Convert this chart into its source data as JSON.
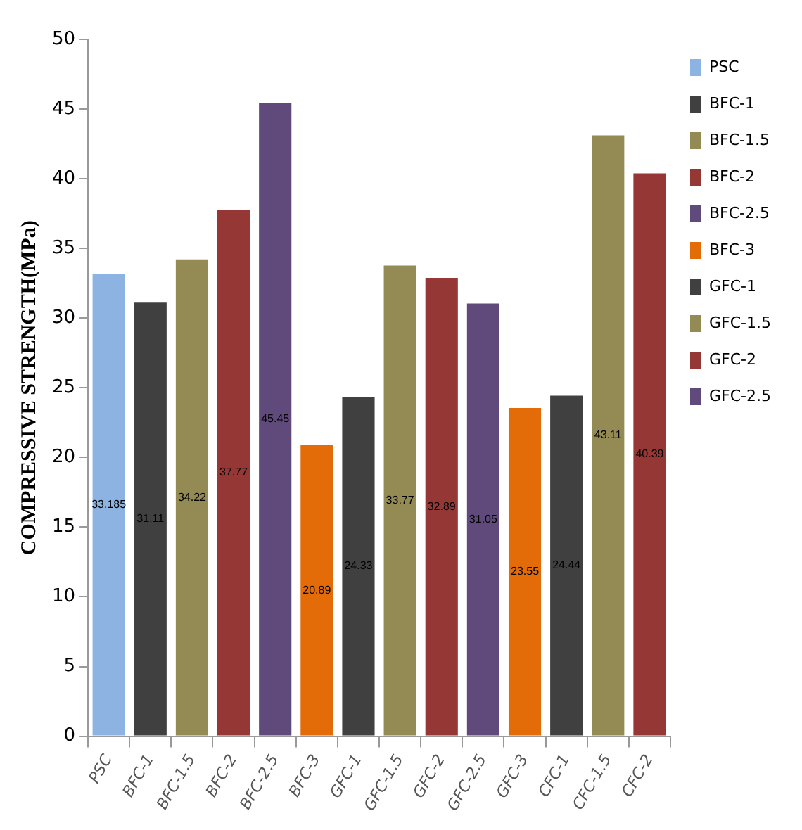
{
  "chart_data": {
    "type": "bar",
    "ylabel": "COMPRESSIVE STRENGTH(MPa)",
    "categories": [
      "PSC",
      "BFC-1",
      "BFC-1.5",
      "BFC-2",
      "BFC-2.5",
      "BFC-3",
      "GFC-1",
      "GFC-1.5",
      "GFC-2",
      "GFC-2.5",
      "GFC-3",
      "CFC-1",
      "CFC-1.5",
      "CFC-2"
    ],
    "series": [
      {
        "name": "PSC",
        "color": "#8db3e2",
        "values": [
          33.185,
          null,
          null,
          null,
          null,
          null,
          null,
          null,
          null,
          null,
          null,
          null,
          null,
          null
        ]
      },
      {
        "name": "BFC-1",
        "color": "#404040",
        "values": [
          null,
          31.11,
          null,
          null,
          null,
          null,
          null,
          null,
          null,
          null,
          null,
          null,
          null,
          null
        ]
      },
      {
        "name": "BFC-1.5",
        "color": "#948a54",
        "values": [
          null,
          null,
          34.22,
          null,
          null,
          null,
          null,
          null,
          null,
          null,
          null,
          null,
          null,
          null
        ]
      },
      {
        "name": "BFC-2",
        "color": "#953735",
        "values": [
          null,
          null,
          null,
          37.77,
          null,
          null,
          null,
          null,
          null,
          null,
          null,
          null,
          null,
          null
        ]
      },
      {
        "name": "BFC-2.5",
        "color": "#604a7b",
        "values": [
          null,
          null,
          null,
          null,
          45.45,
          null,
          null,
          null,
          null,
          null,
          null,
          null,
          null,
          null
        ]
      },
      {
        "name": "BFC-3",
        "color": "#e36c09",
        "values": [
          null,
          null,
          null,
          null,
          null,
          20.89,
          null,
          null,
          null,
          null,
          null,
          null,
          null,
          null
        ]
      },
      {
        "name": "GFC-1",
        "color": "#404040",
        "values": [
          null,
          null,
          null,
          null,
          null,
          null,
          24.33,
          null,
          null,
          null,
          null,
          null,
          null,
          null
        ]
      },
      {
        "name": "GFC-1.5",
        "color": "#948a54",
        "values": [
          null,
          null,
          null,
          null,
          null,
          null,
          null,
          33.77,
          null,
          null,
          null,
          null,
          null,
          null
        ]
      },
      {
        "name": "GFC-2",
        "color": "#953735",
        "values": [
          null,
          null,
          null,
          null,
          null,
          null,
          null,
          null,
          32.89,
          null,
          null,
          null,
          null,
          null
        ]
      },
      {
        "name": "GFC-2.5",
        "color": "#604a7b",
        "values": [
          null,
          null,
          null,
          null,
          null,
          null,
          null,
          null,
          null,
          31.05,
          null,
          null,
          null,
          null
        ]
      },
      {
        "color": "#e36c09",
        "values": [
          null,
          null,
          null,
          null,
          null,
          null,
          null,
          null,
          null,
          null,
          23.55,
          null,
          null,
          null
        ]
      },
      {
        "color": "#404040",
        "values": [
          null,
          null,
          null,
          null,
          null,
          null,
          null,
          null,
          null,
          null,
          null,
          24.44,
          null,
          null
        ]
      },
      {
        "color": "#948a54",
        "values": [
          null,
          null,
          null,
          null,
          null,
          null,
          null,
          null,
          null,
          null,
          null,
          null,
          43.11,
          null
        ]
      },
      {
        "color": "#953735",
        "values": [
          null,
          null,
          null,
          null,
          null,
          null,
          null,
          null,
          null,
          null,
          null,
          null,
          null,
          40.39
        ]
      }
    ],
    "ylim": [
      0,
      50
    ],
    "yticks": [
      0,
      5,
      10,
      15,
      20,
      25,
      30,
      35,
      40,
      45,
      50
    ],
    "grid": false,
    "legend": "right",
    "data_labels": true
  }
}
